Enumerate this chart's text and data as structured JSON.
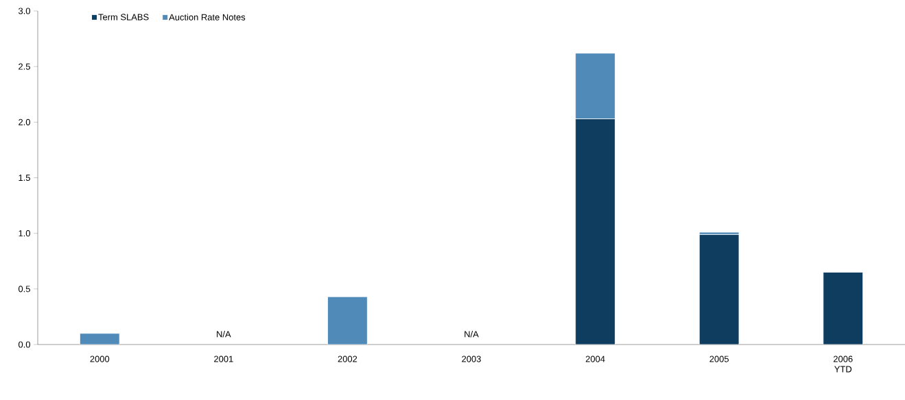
{
  "chart_data": {
    "type": "bar",
    "stacked": true,
    "categories": [
      "2000",
      "2001",
      "2002",
      "2003",
      "2004",
      "2005",
      "2006 YTD"
    ],
    "series": [
      {
        "name": "Term SLABS",
        "color": "#0f3d5f",
        "values": [
          null,
          null,
          null,
          null,
          2.03,
          0.99,
          0.65
        ]
      },
      {
        "name": "Auction Rate Notes",
        "color": "#4f8ab8",
        "values": [
          0.1,
          null,
          0.43,
          null,
          0.59,
          0.02,
          null
        ]
      }
    ],
    "ylim": [
      0,
      3
    ],
    "yticks": [
      {
        "value": 0,
        "label": "0.0"
      },
      {
        "value": 0.5,
        "label": "0.5"
      },
      {
        "value": 1,
        "label": "1.0"
      },
      {
        "value": 1.5,
        "label": "1.5"
      },
      {
        "value": 2,
        "label": "2.0"
      },
      {
        "value": 2.5,
        "label": "2.5"
      },
      {
        "value": 3,
        "label": "3.0"
      }
    ],
    "annotations": [
      "N/A",
      "N/A"
    ],
    "legend": "top left",
    "grid": false
  }
}
